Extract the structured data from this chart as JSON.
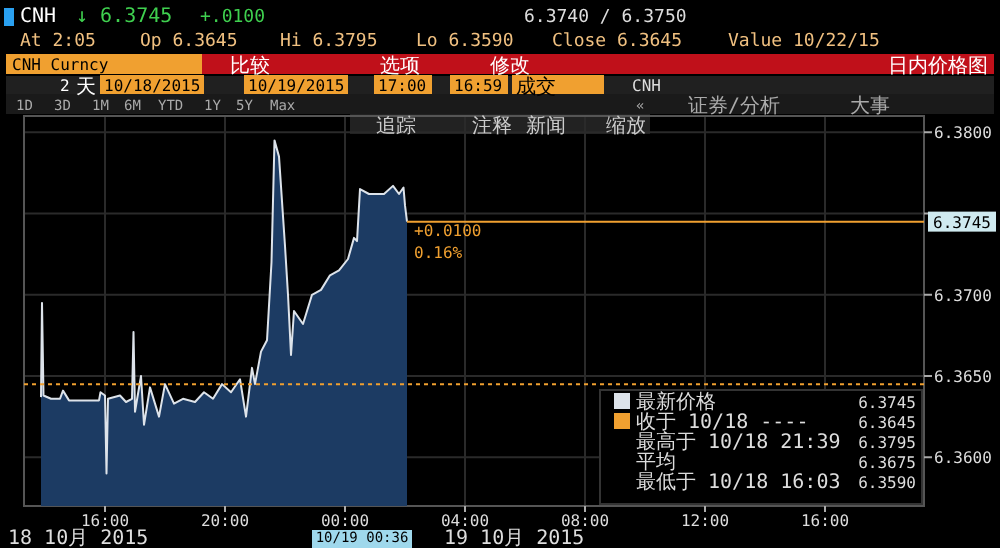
{
  "chart_data": {
    "type": "area",
    "title": "CNH",
    "annotations": [
      "↓ 6.3745",
      "+.0100",
      "6.3740 / 6.3750",
      "At 2:05",
      "Op 6.3645",
      "Hi 6.3795",
      "Lo 6.3590",
      "Close 6.3645",
      "Value 10/22/15",
      "CNH Curncy",
      "比较",
      "选项",
      "修改",
      "日内价格图",
      "2",
      "天",
      "10/18/2015",
      "10/19/2015",
      "17:00",
      "16:59",
      "成交",
      "CNH",
      "1D",
      "3D",
      "1M",
      "6M",
      "YTD",
      "1Y",
      "5Y",
      "Max",
      "«",
      "证券/分析",
      "大事",
      "追踪",
      "注释",
      "新闻",
      "缩放",
      "+0.0100",
      "0.16%",
      "18 10月 2015",
      "10/19 00:36",
      "19 10月 2015",
      "6.3745",
      "6.3645",
      "最高于 10/18 21:39",
      "6.3795",
      "平均",
      "6.3675",
      "最低于 10/18 16:03",
      "6.3590"
    ],
    "series": [
      {
        "name": "最新价格",
        "color": "#dde3ea",
        "x": [
          "2015-10-18T13:52",
          "2015-10-18T13:54",
          "2015-10-18T13:57",
          "2015-10-18T14:12",
          "2015-10-18T14:30",
          "2015-10-18T14:36",
          "2015-10-18T14:48",
          "2015-10-18T15:48",
          "2015-10-18T15:51",
          "2015-10-18T16:00",
          "2015-10-18T16:03",
          "2015-10-18T16:06",
          "2015-10-18T16:30",
          "2015-10-18T16:42",
          "2015-10-18T16:54",
          "2015-10-18T16:57",
          "2015-10-18T17:00",
          "2015-10-18T17:12",
          "2015-10-18T17:18",
          "2015-10-18T17:30",
          "2015-10-18T17:48",
          "2015-10-18T18:00",
          "2015-10-18T18:18",
          "2015-10-18T18:36",
          "2015-10-18T19:00",
          "2015-10-18T19:18",
          "2015-10-18T19:36",
          "2015-10-18T19:54",
          "2015-10-18T20:12",
          "2015-10-18T20:30",
          "2015-10-18T20:42",
          "2015-10-18T20:54",
          "2015-10-18T21:00",
          "2015-10-18T21:12",
          "2015-10-18T21:24",
          "2015-10-18T21:33",
          "2015-10-18T21:39",
          "2015-10-18T21:48",
          "2015-10-18T22:00",
          "2015-10-18T22:06",
          "2015-10-18T22:12",
          "2015-10-18T22:18",
          "2015-10-18T22:36",
          "2015-10-18T22:54",
          "2015-10-18T23:12",
          "2015-10-18T23:30",
          "2015-10-18T23:48",
          "2015-10-19T00:06",
          "2015-10-19T00:18",
          "2015-10-19T00:24",
          "2015-10-19T00:30",
          "2015-10-19T00:48",
          "2015-10-19T01:18",
          "2015-10-19T01:36",
          "2015-10-19T01:48",
          "2015-10-19T01:57",
          "2015-10-19T02:00",
          "2015-10-19T02:04"
        ],
        "values": [
          6.3637,
          6.3695,
          6.3638,
          6.3636,
          6.3636,
          6.3641,
          6.3635,
          6.3635,
          6.364,
          6.3638,
          6.359,
          6.3636,
          6.3638,
          6.3634,
          6.3636,
          6.3677,
          6.3628,
          6.365,
          6.362,
          6.3643,
          6.3625,
          6.3645,
          6.3633,
          6.3636,
          6.3634,
          6.364,
          6.3636,
          6.3645,
          6.364,
          6.3648,
          6.3625,
          6.3655,
          6.3645,
          6.3665,
          6.3672,
          6.372,
          6.3795,
          6.3785,
          6.373,
          6.37,
          6.3663,
          6.369,
          6.3682,
          6.37,
          6.3703,
          6.3712,
          6.3715,
          6.3722,
          6.3735,
          6.3733,
          6.3765,
          6.3762,
          6.3762,
          6.3767,
          6.3762,
          6.3766,
          6.3755,
          6.3745
        ]
      }
    ],
    "xlim": [
      "2015-10-18T13:18",
      "2015-10-19T19:18"
    ],
    "xticks": [
      {
        "value": "2015-10-18T16:00",
        "label": "16:00"
      },
      {
        "value": "2015-10-18T20:00",
        "label": "20:00"
      },
      {
        "value": "2015-10-19T00:00",
        "label": "00:00"
      },
      {
        "value": "2015-10-19T04:00",
        "label": "04:00"
      },
      {
        "value": "2015-10-19T08:00",
        "label": "08:00"
      },
      {
        "value": "2015-10-19T12:00",
        "label": "12:00"
      },
      {
        "value": "2015-10-19T16:00",
        "label": "16:00"
      }
    ],
    "ylim": [
      6.357,
      6.381
    ],
    "yticks": [
      {
        "value": 6.36,
        "label": "6.3600"
      },
      {
        "value": 6.365,
        "label": "6.3650"
      },
      {
        "value": 6.37,
        "label": "6.3700"
      },
      {
        "value": 6.375,
        "label": null
      },
      {
        "value": 6.38,
        "label": "6.3800"
      }
    ],
    "ref_lines": [
      {
        "axis": "y",
        "value": 6.3645,
        "label": "收于 10/18 ----",
        "color": "#f0a030",
        "line_style": "dotted"
      },
      {
        "axis": "y",
        "value": 6.3745,
        "label": "6.3745",
        "color": "#f0a030",
        "line_style": "solid"
      }
    ],
    "grid": true,
    "legend": "bottom right",
    "marker": "none",
    "line_style": "solid"
  }
}
